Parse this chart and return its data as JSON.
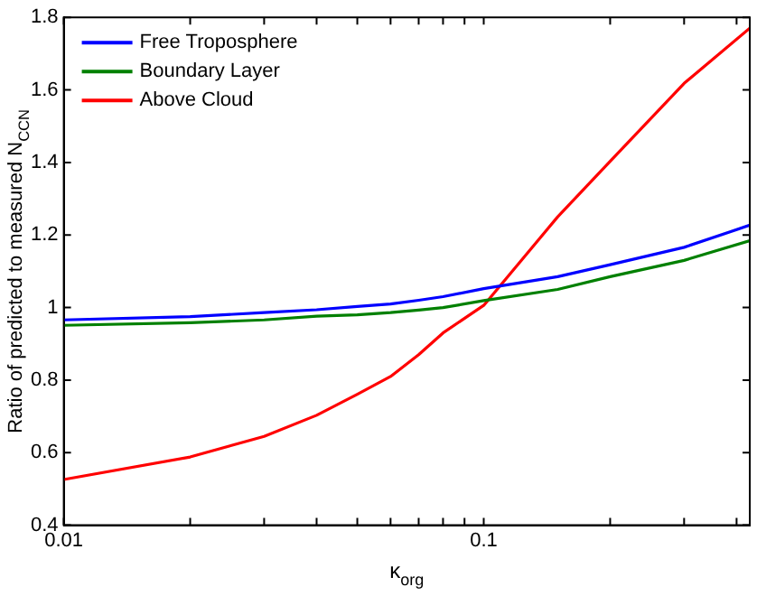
{
  "chart_data": {
    "type": "line",
    "xlabel": "κ$_{org}$",
    "ylabel": "Ratio of predicted to measured N$_{CCN}$",
    "log": "x",
    "grid": false,
    "legend": "top left",
    "marker": "none",
    "line_style": "solid",
    "xlim": [
      0.01,
      0.43
    ],
    "xticks": [
      0.01,
      {
        "value": 0.02,
        "label": null
      },
      {
        "value": 0.03,
        "label": null
      },
      {
        "value": 0.04,
        "label": null
      },
      {
        "value": 0.05,
        "label": null
      },
      {
        "value": 0.06,
        "label": null
      },
      {
        "value": 0.07,
        "label": null
      },
      {
        "value": 0.08,
        "label": null
      },
      {
        "value": 0.09,
        "label": null
      },
      0.1,
      {
        "value": 0.2,
        "label": null
      },
      {
        "value": 0.3,
        "label": null
      },
      {
        "value": 0.4,
        "label": null
      }
    ],
    "ylim": [
      0.4,
      1.8
    ],
    "yticks": [
      0.4,
      0.6,
      0.8,
      1,
      1.2,
      1.4,
      1.6,
      1.8
    ],
    "x": [
      0.01,
      0.02,
      0.03,
      0.04,
      0.05,
      0.06,
      0.07,
      0.08,
      0.1,
      0.15,
      0.2,
      0.3,
      0.43
    ],
    "series": [
      {
        "name": "Free Troposphere",
        "color": "#0000ff",
        "values": [
          0.966,
          0.975,
          0.986,
          0.994,
          1.003,
          1.01,
          1.02,
          1.03,
          1.052,
          1.085,
          1.118,
          1.166,
          1.227
        ]
      },
      {
        "name": "Boundary Layer",
        "color": "#008000",
        "values": [
          0.951,
          0.958,
          0.966,
          0.976,
          0.98,
          0.986,
          0.993,
          1.0,
          1.019,
          1.05,
          1.085,
          1.13,
          1.184
        ]
      },
      {
        "name": "Above Cloud",
        "color": "#ff0000",
        "values": [
          0.526,
          0.588,
          0.645,
          0.703,
          0.761,
          0.81,
          0.87,
          0.93,
          1.006,
          1.25,
          1.403,
          1.618,
          1.77
        ]
      }
    ]
  }
}
